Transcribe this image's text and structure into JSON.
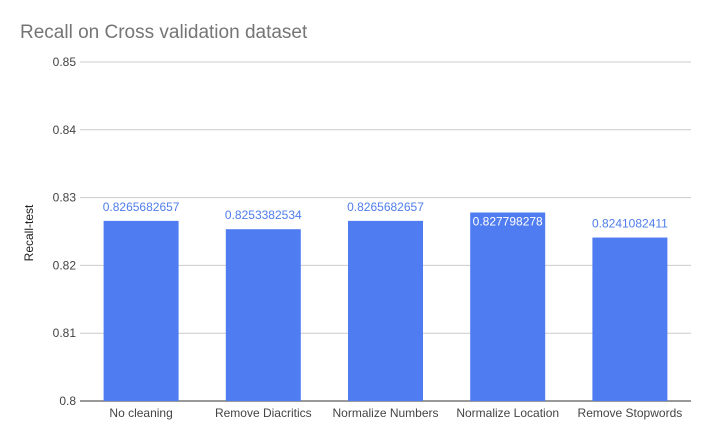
{
  "chart_data": {
    "type": "bar",
    "title": "Recall on Cross validation dataset",
    "xlabel": "",
    "ylabel": "Recall-test",
    "categories": [
      "No cleaning",
      "Remove Diacritics",
      "Normalize Numbers",
      "Normalize Location",
      "Remove Stopwords"
    ],
    "values": [
      0.8265682657,
      0.8253382534,
      0.8265682657,
      0.827798278,
      0.8241082411
    ],
    "data_labels": [
      "0.8265682657",
      "0.8253382534",
      "0.8265682657",
      "0.827798278",
      "0.8241082411"
    ],
    "ylim": [
      0.8,
      0.85
    ],
    "yticks": [
      0.8,
      0.81,
      0.82,
      0.83,
      0.84,
      0.85
    ],
    "ytick_labels": [
      "0.8",
      "0.81",
      "0.82",
      "0.83",
      "0.84",
      "0.85"
    ],
    "grid": true,
    "legend": "none",
    "colors": {
      "bar": "#507cf1",
      "data_label": "#4f7dea",
      "data_label_inside": "#ffffff",
      "title": "#757575",
      "tick_label": "#444444",
      "grid": "#cccccc",
      "baseline": "#333333"
    }
  }
}
